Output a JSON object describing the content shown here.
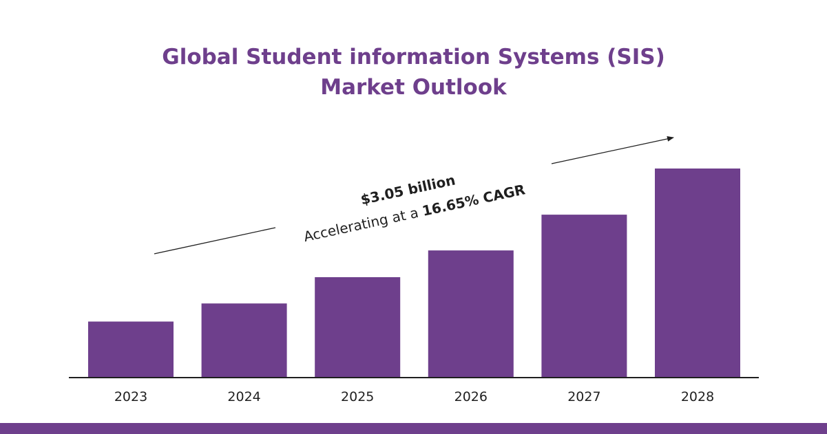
{
  "header": {
    "title_line1": "Global Student information Systems (SIS)",
    "title_line2": "Market Outlook"
  },
  "annotation": {
    "value": "$3.05 billion",
    "prefix": "Accelerating at a ",
    "cagr": "16.65% CAGR"
  },
  "colors": {
    "bar": "#6e3f8c",
    "title": "#6e3f8c",
    "text": "#1f1f1f",
    "band": "#6e3f8c"
  },
  "chart_data": {
    "type": "bar",
    "categories": [
      "2023",
      "2024",
      "2025",
      "2026",
      "2027",
      "2028"
    ],
    "values": [
      1.3,
      1.72,
      2.33,
      2.95,
      3.78,
      4.85
    ],
    "title": "Global Student information Systems (SIS) Market Outlook",
    "xlabel": "",
    "ylabel": "",
    "ylim": [
      0,
      4.85
    ],
    "grid": false,
    "legend": "none",
    "annotations": [
      "$3.05 billion",
      "Accelerating at a 16.65% CAGR"
    ]
  }
}
